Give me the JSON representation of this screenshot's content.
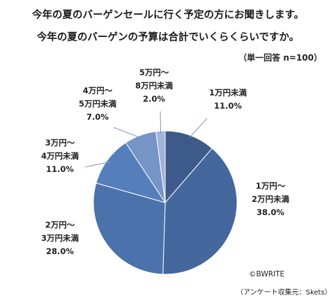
{
  "title_line1": "今年の夏のバーゲンセールに行く予定の方にお聞きします。",
  "title_line2": "今年の夏のバーゲンの予算は合計でいくらくらいですか。",
  "note": "（単一回答 n=100）",
  "credit": "©BWRITE",
  "source": "（アンケート収集元：Skets）",
  "chart_data": {
    "type": "pie",
    "title": "今年の夏のバーゲンの予算は合計でいくらくらいですか。",
    "start_angle_deg": 0,
    "direction": "clockwise",
    "slices": [
      {
        "line1": "1万円未満",
        "line2": "",
        "value": 11.0,
        "value_label": "11.0%",
        "color": "#3e5a8a"
      },
      {
        "line1": "1万円～",
        "line2": "2万円未満",
        "value": 38.0,
        "value_label": "38.0%",
        "color": "#44679d"
      },
      {
        "line1": "2万円～",
        "line2": "3万円未満",
        "value": 28.0,
        "value_label": "28.0%",
        "color": "#4b72ab"
      },
      {
        "line1": "3万円～",
        "line2": "4万円未満",
        "value": 11.0,
        "value_label": "11.0%",
        "color": "#557fbb"
      },
      {
        "line1": "4万円～",
        "line2": "5万円未満",
        "value": 7.0,
        "value_label": "7.0%",
        "color": "#7694c6"
      },
      {
        "line1": "5万円～",
        "line2": "8万円未満",
        "value": 2.0,
        "value_label": "2.0%",
        "color": "#9fb4da"
      }
    ]
  }
}
